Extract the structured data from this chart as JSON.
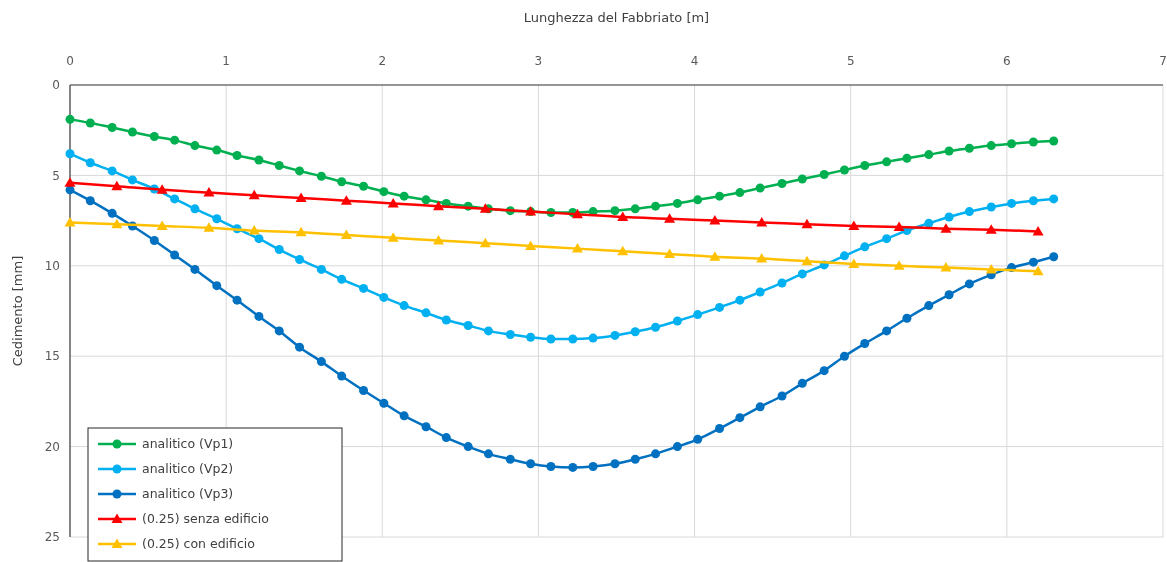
{
  "chart_data": {
    "type": "line",
    "xlabel": "Lunghezza del Fabbriato [m]",
    "ylabel": "Cedimento [mm]",
    "xlim": [
      0,
      7
    ],
    "xticks": [
      0,
      1,
      2,
      3,
      4,
      5,
      6,
      7
    ],
    "ylim": [
      25,
      0
    ],
    "yticks": [
      0,
      5,
      10,
      15,
      20,
      25
    ],
    "grid": true,
    "legend": "bottom left",
    "line_style": "solid",
    "series": [
      {
        "name": "analitico (Vp1)",
        "color": "#00b050",
        "marker": "circle",
        "x": [
          0,
          0.13,
          0.27,
          0.4,
          0.54,
          0.67,
          0.8,
          0.94,
          1.07,
          1.21,
          1.34,
          1.47,
          1.61,
          1.74,
          1.88,
          2.01,
          2.14,
          2.28,
          2.41,
          2.55,
          2.68,
          2.82,
          2.95,
          3.08,
          3.22,
          3.35,
          3.49,
          3.62,
          3.75,
          3.89,
          4.02,
          4.16,
          4.29,
          4.42,
          4.56,
          4.69,
          4.83,
          4.96,
          5.09,
          5.23,
          5.36,
          5.5,
          5.63,
          5.76,
          5.9,
          6.03,
          6.17,
          6.3
        ],
        "values": [
          1.9,
          2.1,
          2.35,
          2.6,
          2.85,
          3.05,
          3.35,
          3.6,
          3.9,
          4.15,
          4.45,
          4.75,
          5.05,
          5.35,
          5.6,
          5.9,
          6.15,
          6.35,
          6.55,
          6.7,
          6.85,
          6.95,
          7.0,
          7.05,
          7.05,
          7.0,
          6.95,
          6.85,
          6.7,
          6.55,
          6.35,
          6.15,
          5.95,
          5.7,
          5.45,
          5.2,
          4.95,
          4.7,
          4.45,
          4.25,
          4.05,
          3.85,
          3.65,
          3.5,
          3.35,
          3.25,
          3.15,
          3.1
        ]
      },
      {
        "name": "analitico (Vp2)",
        "color": "#00b0f0",
        "marker": "circle",
        "x": [
          0,
          0.13,
          0.27,
          0.4,
          0.54,
          0.67,
          0.8,
          0.94,
          1.07,
          1.21,
          1.34,
          1.47,
          1.61,
          1.74,
          1.88,
          2.01,
          2.14,
          2.28,
          2.41,
          2.55,
          2.68,
          2.82,
          2.95,
          3.08,
          3.22,
          3.35,
          3.49,
          3.62,
          3.75,
          3.89,
          4.02,
          4.16,
          4.29,
          4.42,
          4.56,
          4.69,
          4.83,
          4.96,
          5.09,
          5.23,
          5.36,
          5.5,
          5.63,
          5.76,
          5.9,
          6.03,
          6.17,
          6.3
        ],
        "values": [
          3.8,
          4.3,
          4.75,
          5.25,
          5.75,
          6.3,
          6.85,
          7.4,
          7.95,
          8.5,
          9.1,
          9.65,
          10.2,
          10.75,
          11.25,
          11.75,
          12.2,
          12.6,
          13.0,
          13.3,
          13.6,
          13.8,
          13.95,
          14.05,
          14.05,
          14.0,
          13.85,
          13.65,
          13.4,
          13.05,
          12.7,
          12.3,
          11.9,
          11.45,
          10.95,
          10.45,
          9.95,
          9.45,
          8.95,
          8.5,
          8.05,
          7.65,
          7.3,
          7.0,
          6.75,
          6.55,
          6.4,
          6.3
        ]
      },
      {
        "name": "analitico (Vp3)",
        "color": "#0070c0",
        "marker": "circle",
        "x": [
          0,
          0.13,
          0.27,
          0.4,
          0.54,
          0.67,
          0.8,
          0.94,
          1.07,
          1.21,
          1.34,
          1.47,
          1.61,
          1.74,
          1.88,
          2.01,
          2.14,
          2.28,
          2.41,
          2.55,
          2.68,
          2.82,
          2.95,
          3.08,
          3.22,
          3.35,
          3.49,
          3.62,
          3.75,
          3.89,
          4.02,
          4.16,
          4.29,
          4.42,
          4.56,
          4.69,
          4.83,
          4.96,
          5.09,
          5.23,
          5.36,
          5.5,
          5.63,
          5.76,
          5.9,
          6.03,
          6.17,
          6.3
        ],
        "values": [
          5.8,
          6.4,
          7.1,
          7.8,
          8.6,
          9.4,
          10.2,
          11.1,
          11.9,
          12.8,
          13.6,
          14.5,
          15.3,
          16.1,
          16.9,
          17.6,
          18.3,
          18.9,
          19.5,
          20.0,
          20.4,
          20.7,
          20.95,
          21.1,
          21.15,
          21.1,
          20.95,
          20.7,
          20.4,
          20.0,
          19.6,
          19.0,
          18.4,
          17.8,
          17.2,
          16.5,
          15.8,
          15.0,
          14.3,
          13.6,
          12.9,
          12.2,
          11.6,
          11.0,
          10.5,
          10.1,
          9.8,
          9.5
        ]
      },
      {
        "name": "(0.25) senza edificio",
        "color": "#ff0000",
        "marker": "triangle",
        "x": [
          0,
          0.3,
          0.59,
          0.89,
          1.18,
          1.48,
          1.77,
          2.07,
          2.36,
          2.66,
          2.95,
          3.25,
          3.54,
          3.84,
          4.13,
          4.43,
          4.72,
          5.02,
          5.31,
          5.61,
          5.9,
          6.2
        ],
        "values": [
          5.4,
          5.6,
          5.8,
          5.95,
          6.1,
          6.25,
          6.4,
          6.55,
          6.7,
          6.85,
          7.0,
          7.15,
          7.3,
          7.4,
          7.5,
          7.6,
          7.7,
          7.8,
          7.85,
          7.95,
          8.0,
          8.1
        ]
      },
      {
        "name": "(0.25) con edificio",
        "color": "#ffc000",
        "marker": "triangle",
        "x": [
          0,
          0.3,
          0.59,
          0.89,
          1.18,
          1.48,
          1.77,
          2.07,
          2.36,
          2.66,
          2.95,
          3.25,
          3.54,
          3.84,
          4.13,
          4.43,
          4.72,
          5.02,
          5.31,
          5.61,
          5.9,
          6.2
        ],
        "values": [
          7.6,
          7.7,
          7.8,
          7.9,
          8.05,
          8.15,
          8.3,
          8.45,
          8.6,
          8.75,
          8.9,
          9.05,
          9.2,
          9.35,
          9.5,
          9.6,
          9.75,
          9.9,
          10.0,
          10.1,
          10.2,
          10.3
        ]
      }
    ]
  }
}
